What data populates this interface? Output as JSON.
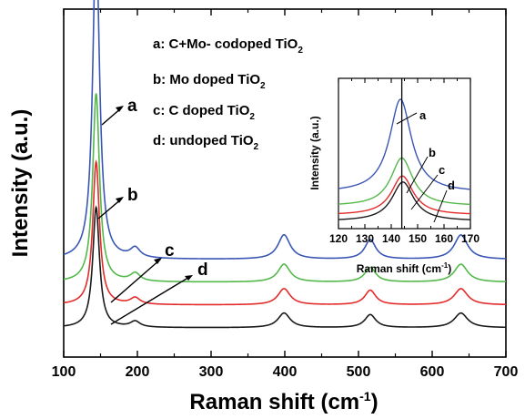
{
  "chart_data": [
    {
      "type": "line",
      "xlabel": "Raman shift (cm",
      "xlabel_sup": "-1",
      "xlabel_end": ")",
      "ylabel": "Intensity (a.u.)",
      "xlim": [
        100,
        700
      ],
      "xticks": [
        "100",
        "200",
        "300",
        "400",
        "500",
        "600",
        "700"
      ],
      "peaks": [
        144,
        197,
        399,
        516,
        639
      ],
      "series": [
        {
          "name": "a",
          "color": "#3a56b5",
          "baseline": 0.3,
          "heights": [
            1.0,
            0.03,
            0.075,
            0.06,
            0.075
          ]
        },
        {
          "name": "b",
          "color": "#53b84a",
          "baseline": 0.23,
          "heights": [
            0.58,
            0.025,
            0.055,
            0.045,
            0.055
          ]
        },
        {
          "name": "c",
          "color": "#e32b2b",
          "baseline": 0.16,
          "heights": [
            0.44,
            0.02,
            0.05,
            0.045,
            0.05
          ]
        },
        {
          "name": "d",
          "color": "#1a1a1a",
          "baseline": 0.09,
          "heights": [
            0.37,
            0.018,
            0.045,
            0.04,
            0.045
          ]
        }
      ],
      "curve_labels": [
        "a",
        "b",
        "c",
        "d"
      ],
      "legend": [
        {
          "text": "a: C+Mo- codoped TiO",
          "sub": "2"
        },
        {
          "text": "b: Mo doped TiO",
          "sub": "2"
        },
        {
          "text": "c: C doped TiO",
          "sub": "2"
        },
        {
          "text": "d: undoped TiO",
          "sub": "2"
        }
      ]
    },
    {
      "type": "line",
      "xlabel": "Raman shift (cm",
      "xlabel_sup": "-1",
      "xlabel_end": ")",
      "ylabel": "Intensity (a.u.)",
      "xlim": [
        120,
        170
      ],
      "xticks": [
        "120",
        "130",
        "140",
        "150",
        "160",
        "170"
      ],
      "reference_line_x": 144,
      "series": [
        {
          "name": "a",
          "color": "#3a56b5",
          "peak_x": 143.5,
          "baseline": 0.24,
          "peak_height": 0.62
        },
        {
          "name": "b",
          "color": "#53b84a",
          "peak_x": 144.0,
          "baseline": 0.15,
          "peak_height": 0.32
        },
        {
          "name": "c",
          "color": "#e32b2b",
          "peak_x": 144.2,
          "baseline": 0.09,
          "peak_height": 0.26
        },
        {
          "name": "d",
          "color": "#1a1a1a",
          "peak_x": 144.4,
          "baseline": 0.05,
          "peak_height": 0.26
        }
      ],
      "curve_labels": [
        "a",
        "b",
        "c",
        "d"
      ]
    }
  ]
}
